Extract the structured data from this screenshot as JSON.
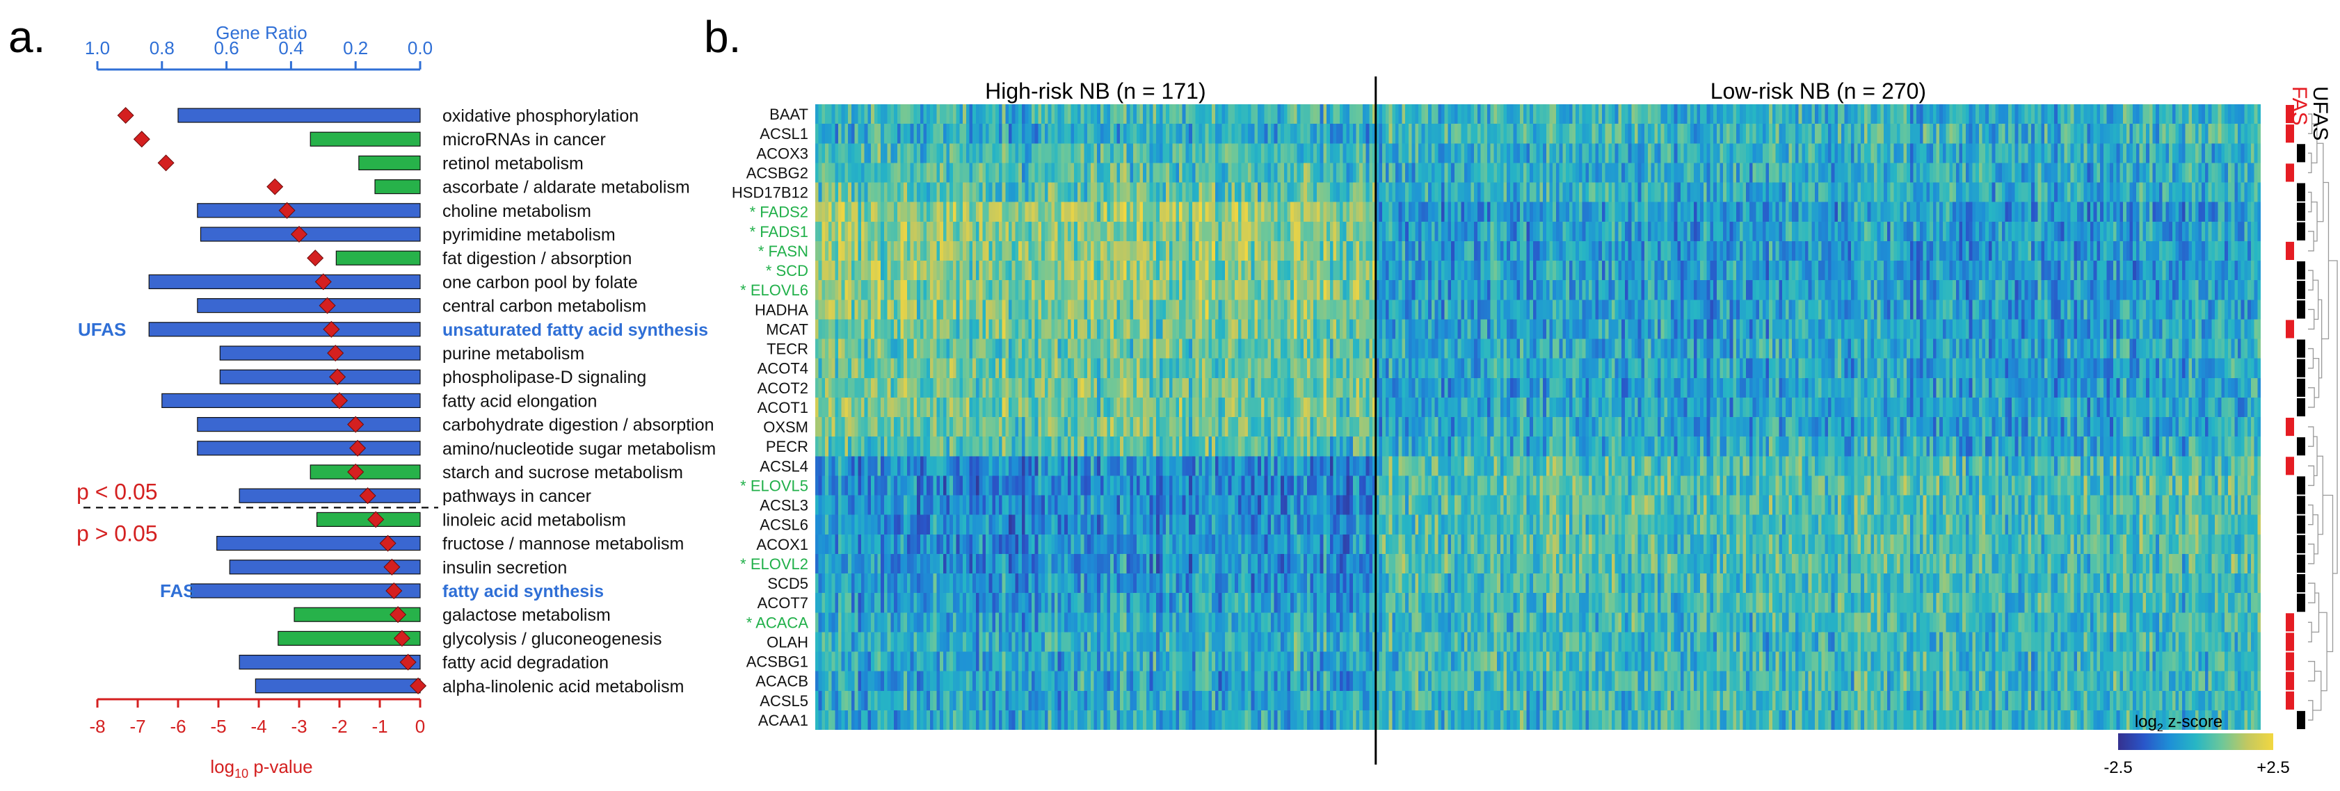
{
  "panel_a_label": "a.",
  "panel_b_label": "b.",
  "chart_data": [
    {
      "type": "bar",
      "panel": "a",
      "title": "",
      "top_axis_label": "Gene Ratio",
      "top_axis_range": [
        1.0,
        0.0
      ],
      "top_ticks": [
        "1.0",
        "0.8",
        "0.6",
        "0.4",
        "0.2",
        "0.0"
      ],
      "bottom_axis_label_prefix": "log",
      "bottom_axis_label_sub": "10",
      "bottom_axis_label_suffix": " p-value",
      "bottom_axis_range": [
        -8,
        0
      ],
      "bottom_ticks": [
        "-8",
        "-7",
        "-6",
        "-5",
        "-4",
        "-3",
        "-2",
        "-1",
        "0"
      ],
      "threshold_above_label": "p < 0.05",
      "threshold_below_label": "p > 0.05",
      "threshold_after_index": 16,
      "group_labels": [
        {
          "text": "UFAS",
          "index": 9
        },
        {
          "text": "FAS",
          "index": 20
        }
      ],
      "colors": {
        "blue_bar": "#3a67d1",
        "green_bar": "#27b24a",
        "marker": "#d42020",
        "axis_top": "#2f6fd6",
        "axis_bottom": "#d42020",
        "highlight_text": "#2f6fd6"
      },
      "pathways": [
        {
          "name": "oxidative phosphorylation",
          "ratio": 0.75,
          "color": "blue",
          "log10p": -7.3,
          "highlight": false
        },
        {
          "name": "microRNAs in cancer",
          "ratio": 0.34,
          "color": "green",
          "log10p": -6.9,
          "highlight": false
        },
        {
          "name": "retinol metabolism",
          "ratio": 0.19,
          "color": "green",
          "log10p": -6.3,
          "highlight": false
        },
        {
          "name": "ascorbate / aldarate metabolism",
          "ratio": 0.14,
          "color": "green",
          "log10p": -3.6,
          "highlight": false
        },
        {
          "name": "choline metabolism",
          "ratio": 0.69,
          "color": "blue",
          "log10p": -3.3,
          "highlight": false
        },
        {
          "name": "pyrimidine metabolism",
          "ratio": 0.68,
          "color": "blue",
          "log10p": -3.0,
          "highlight": false
        },
        {
          "name": "fat digestion / absorption",
          "ratio": 0.26,
          "color": "green",
          "log10p": -2.6,
          "highlight": false
        },
        {
          "name": "one carbon pool by folate",
          "ratio": 0.84,
          "color": "blue",
          "log10p": -2.4,
          "highlight": false
        },
        {
          "name": "central carbon metabolism",
          "ratio": 0.69,
          "color": "blue",
          "log10p": -2.3,
          "highlight": false
        },
        {
          "name": "unsaturated fatty acid synthesis",
          "ratio": 0.84,
          "color": "blue",
          "log10p": -2.2,
          "highlight": true
        },
        {
          "name": "purine metabolism",
          "ratio": 0.62,
          "color": "blue",
          "log10p": -2.1,
          "highlight": false
        },
        {
          "name": "phospholipase-D signaling",
          "ratio": 0.62,
          "color": "blue",
          "log10p": -2.05,
          "highlight": false
        },
        {
          "name": "fatty acid elongation",
          "ratio": 0.8,
          "color": "blue",
          "log10p": -2.0,
          "highlight": false
        },
        {
          "name": "carbohydrate digestion / absorption",
          "ratio": 0.69,
          "color": "blue",
          "log10p": -1.6,
          "highlight": false
        },
        {
          "name": "amino/nucleotide sugar metabolism",
          "ratio": 0.69,
          "color": "blue",
          "log10p": -1.55,
          "highlight": false
        },
        {
          "name": "starch and sucrose metabolism",
          "ratio": 0.34,
          "color": "green",
          "log10p": -1.6,
          "highlight": false
        },
        {
          "name": "pathways in cancer",
          "ratio": 0.56,
          "color": "blue",
          "log10p": -1.3,
          "highlight": false
        },
        {
          "name": "linoleic acid metabolism",
          "ratio": 0.32,
          "color": "green",
          "log10p": -1.1,
          "highlight": false
        },
        {
          "name": "fructose / mannose metabolism",
          "ratio": 0.63,
          "color": "blue",
          "log10p": -0.8,
          "highlight": false
        },
        {
          "name": "insulin secretion",
          "ratio": 0.59,
          "color": "blue",
          "log10p": -0.7,
          "highlight": false
        },
        {
          "name": "fatty acid synthesis",
          "ratio": 0.71,
          "color": "blue",
          "log10p": -0.65,
          "highlight": true
        },
        {
          "name": "galactose metabolism",
          "ratio": 0.39,
          "color": "green",
          "log10p": -0.55,
          "highlight": false
        },
        {
          "name": "glycolysis / gluconeogenesis",
          "ratio": 0.44,
          "color": "green",
          "log10p": -0.45,
          "highlight": false
        },
        {
          "name": "fatty acid degradation",
          "ratio": 0.56,
          "color": "blue",
          "log10p": -0.3,
          "highlight": false
        },
        {
          "name": "alpha-linolenic acid metabolism",
          "ratio": 0.51,
          "color": "blue",
          "log10p": -0.05,
          "highlight": false
        }
      ]
    },
    {
      "type": "heatmap",
      "panel": "b",
      "groups": [
        {
          "title": "High-risk NB (n = 171)",
          "n": 171
        },
        {
          "title": "Low-risk NB (n = 270)",
          "n": 270
        }
      ],
      "genes": [
        {
          "name": "BAAT",
          "starred": false,
          "cls": "FAS",
          "high": 0.1
        },
        {
          "name": "ACSL1",
          "starred": false,
          "cls": "FAS",
          "high": -0.2
        },
        {
          "name": "ACOX3",
          "starred": false,
          "cls": "UFAS",
          "high": 0.2
        },
        {
          "name": "ACSBG2",
          "starred": false,
          "cls": "FAS",
          "high": 0.3
        },
        {
          "name": "HSD17B12",
          "starred": false,
          "cls": "UFAS",
          "high": 0.4
        },
        {
          "name": "FADS2",
          "starred": true,
          "cls": "UFAS",
          "high": 1.0
        },
        {
          "name": "FADS1",
          "starred": true,
          "cls": "UFAS",
          "high": 0.9
        },
        {
          "name": "FASN",
          "starred": true,
          "cls": "FAS",
          "high": 0.9
        },
        {
          "name": "SCD",
          "starred": true,
          "cls": "UFAS",
          "high": 0.9
        },
        {
          "name": "ELOVL6",
          "starred": true,
          "cls": "UFAS",
          "high": 0.9
        },
        {
          "name": "HADHA",
          "starred": false,
          "cls": "UFAS",
          "high": 0.8
        },
        {
          "name": "MCAT",
          "starred": false,
          "cls": "FAS",
          "high": 0.7
        },
        {
          "name": "TECR",
          "starred": false,
          "cls": "UFAS",
          "high": 0.5
        },
        {
          "name": "ACOT4",
          "starred": false,
          "cls": "UFAS",
          "high": 0.6
        },
        {
          "name": "ACOT2",
          "starred": false,
          "cls": "UFAS",
          "high": 0.7
        },
        {
          "name": "ACOT1",
          "starred": false,
          "cls": "UFAS",
          "high": 0.7
        },
        {
          "name": "OXSM",
          "starred": false,
          "cls": "FAS",
          "high": 0.6
        },
        {
          "name": "PECR",
          "starred": false,
          "cls": "UFAS",
          "high": 0.3
        },
        {
          "name": "ACSL4",
          "starred": false,
          "cls": "FAS",
          "high": -0.6
        },
        {
          "name": "ELOVL5",
          "starred": true,
          "cls": "UFAS",
          "high": -0.8
        },
        {
          "name": "ACSL3",
          "starred": false,
          "cls": "UFAS",
          "high": -0.7
        },
        {
          "name": "ACSL6",
          "starred": false,
          "cls": "UFAS",
          "high": -0.7
        },
        {
          "name": "ACOX1",
          "starred": false,
          "cls": "UFAS",
          "high": -0.6
        },
        {
          "name": "ELOVL2",
          "starred": true,
          "cls": "UFAS",
          "high": -0.6
        },
        {
          "name": "SCD5",
          "starred": false,
          "cls": "UFAS",
          "high": -0.5
        },
        {
          "name": "ACOT7",
          "starred": false,
          "cls": "UFAS",
          "high": -0.4
        },
        {
          "name": "ACACA",
          "starred": true,
          "cls": "FAS",
          "high": -0.3
        },
        {
          "name": "OLAH",
          "starred": false,
          "cls": "FAS",
          "high": -0.1
        },
        {
          "name": "ACSBG1",
          "starred": false,
          "cls": "FAS",
          "high": -0.2
        },
        {
          "name": "ACACB",
          "starred": false,
          "cls": "FAS",
          "high": -0.3
        },
        {
          "name": "ACSL5",
          "starred": false,
          "cls": "FAS",
          "high": -0.2
        },
        {
          "name": "ACAA1",
          "starred": false,
          "cls": "UFAS",
          "high": -0.2
        }
      ],
      "star_prefix": "* ",
      "class_labels": {
        "UFAS": "UFAS",
        "FAS": "FAS"
      },
      "colorbar": {
        "label_prefix": "log",
        "label_sub": "2",
        "label_suffix": " z-score",
        "min_label": "-2.5",
        "max_label": "+2.5",
        "min": -2.5,
        "max": 2.5,
        "colors": [
          "#35318f",
          "#2956c9",
          "#1e90d6",
          "#27b6c4",
          "#6cc79a",
          "#c3c860",
          "#f2d740"
        ]
      },
      "colors": {
        "starred_gene": "#21b04a",
        "ufas": "#000000",
        "fas": "#e51c23"
      }
    }
  ]
}
